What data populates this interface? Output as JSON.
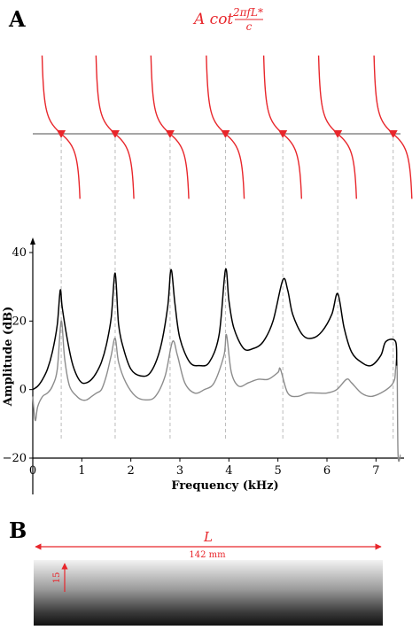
{
  "panel_a": {
    "label": "A",
    "formula": {
      "main": "A cot",
      "numerator": "2πfL*",
      "denominator": "c"
    },
    "resonance_frequencies_khz": [
      0.58,
      1.68,
      2.8,
      3.93,
      5.1,
      6.22,
      7.35
    ]
  },
  "panel_b": {
    "label": "B",
    "length_symbol": "L",
    "length_text": "142 mm",
    "height_text": "15"
  },
  "colors": {
    "red": "#e8262b",
    "series_top": "#000000",
    "series_bottom": "#8c8c8c",
    "gridline": "#bbbbbb"
  },
  "chart_data": {
    "type": "line",
    "xlabel": "Frequency (kHz)",
    "ylabel": "Amplitude (dB)",
    "xlim": [
      0,
      7.5
    ],
    "ylim": [
      -20,
      42
    ],
    "xticks": [
      0,
      1,
      2,
      3,
      4,
      5,
      6,
      7
    ],
    "yticks": [
      -20,
      0,
      20,
      40
    ],
    "xtick_labels": [
      "0",
      "1",
      "2",
      "3",
      "4",
      "5",
      "6",
      "7"
    ],
    "ytick_labels": [
      "−20",
      "0",
      "20",
      "40"
    ],
    "series": [
      {
        "color": "#000000",
        "x": [
          0.0,
          0.1,
          0.2,
          0.3,
          0.4,
          0.5,
          0.56,
          0.6,
          0.7,
          0.8,
          0.9,
          1.0,
          1.1,
          1.2,
          1.3,
          1.4,
          1.5,
          1.6,
          1.68,
          1.75,
          1.85,
          2.0,
          2.2,
          2.4,
          2.6,
          2.75,
          2.82,
          2.9,
          3.0,
          3.2,
          3.4,
          3.6,
          3.8,
          3.93,
          4.0,
          4.1,
          4.3,
          4.5,
          4.7,
          4.9,
          5.1,
          5.2,
          5.3,
          5.5,
          5.7,
          5.9,
          6.1,
          6.22,
          6.35,
          6.5,
          6.7,
          6.9,
          7.1,
          7.2,
          7.4,
          7.42
        ],
        "y": [
          0,
          1,
          3,
          6,
          11,
          19,
          29,
          24,
          15,
          8,
          4,
          2,
          2,
          3,
          5,
          8,
          13,
          21,
          34,
          19,
          12,
          6,
          4,
          5,
          12,
          24,
          35,
          25,
          15,
          8,
          7,
          8,
          16,
          35,
          26,
          18,
          12,
          12,
          14,
          20,
          32,
          29,
          22,
          16,
          15,
          17,
          22,
          28,
          18,
          11,
          8,
          7,
          10,
          14,
          14,
          7
        ]
      },
      {
        "color": "#8c8c8c",
        "x": [
          0.0,
          0.05,
          0.1,
          0.2,
          0.3,
          0.4,
          0.5,
          0.58,
          0.65,
          0.75,
          0.9,
          1.0,
          1.1,
          1.2,
          1.3,
          1.4,
          1.5,
          1.6,
          1.68,
          1.75,
          1.9,
          2.1,
          2.3,
          2.5,
          2.7,
          2.85,
          2.95,
          3.1,
          3.3,
          3.5,
          3.7,
          3.9,
          3.95,
          4.05,
          4.2,
          4.4,
          4.6,
          4.8,
          5.0,
          5.05,
          5.2,
          5.4,
          5.6,
          5.8,
          6.0,
          6.2,
          6.4,
          6.5,
          6.7,
          6.9,
          7.1,
          7.3,
          7.38,
          7.4,
          7.43,
          7.45,
          7.5
        ],
        "y": [
          -2,
          -9,
          -5,
          -2,
          -1,
          1,
          6,
          20,
          9,
          1,
          -2,
          -3,
          -3,
          -2,
          -1,
          0,
          4,
          10,
          15,
          8,
          2,
          -2,
          -3,
          -2,
          4,
          14,
          10,
          2,
          -1,
          0,
          2,
          10,
          16,
          5,
          1,
          2,
          3,
          3,
          5,
          6,
          -1,
          -2,
          -1,
          -1,
          -1,
          0,
          3,
          2,
          -1,
          -2,
          -1,
          1,
          3,
          6,
          7,
          -19,
          -19
        ]
      }
    ]
  }
}
